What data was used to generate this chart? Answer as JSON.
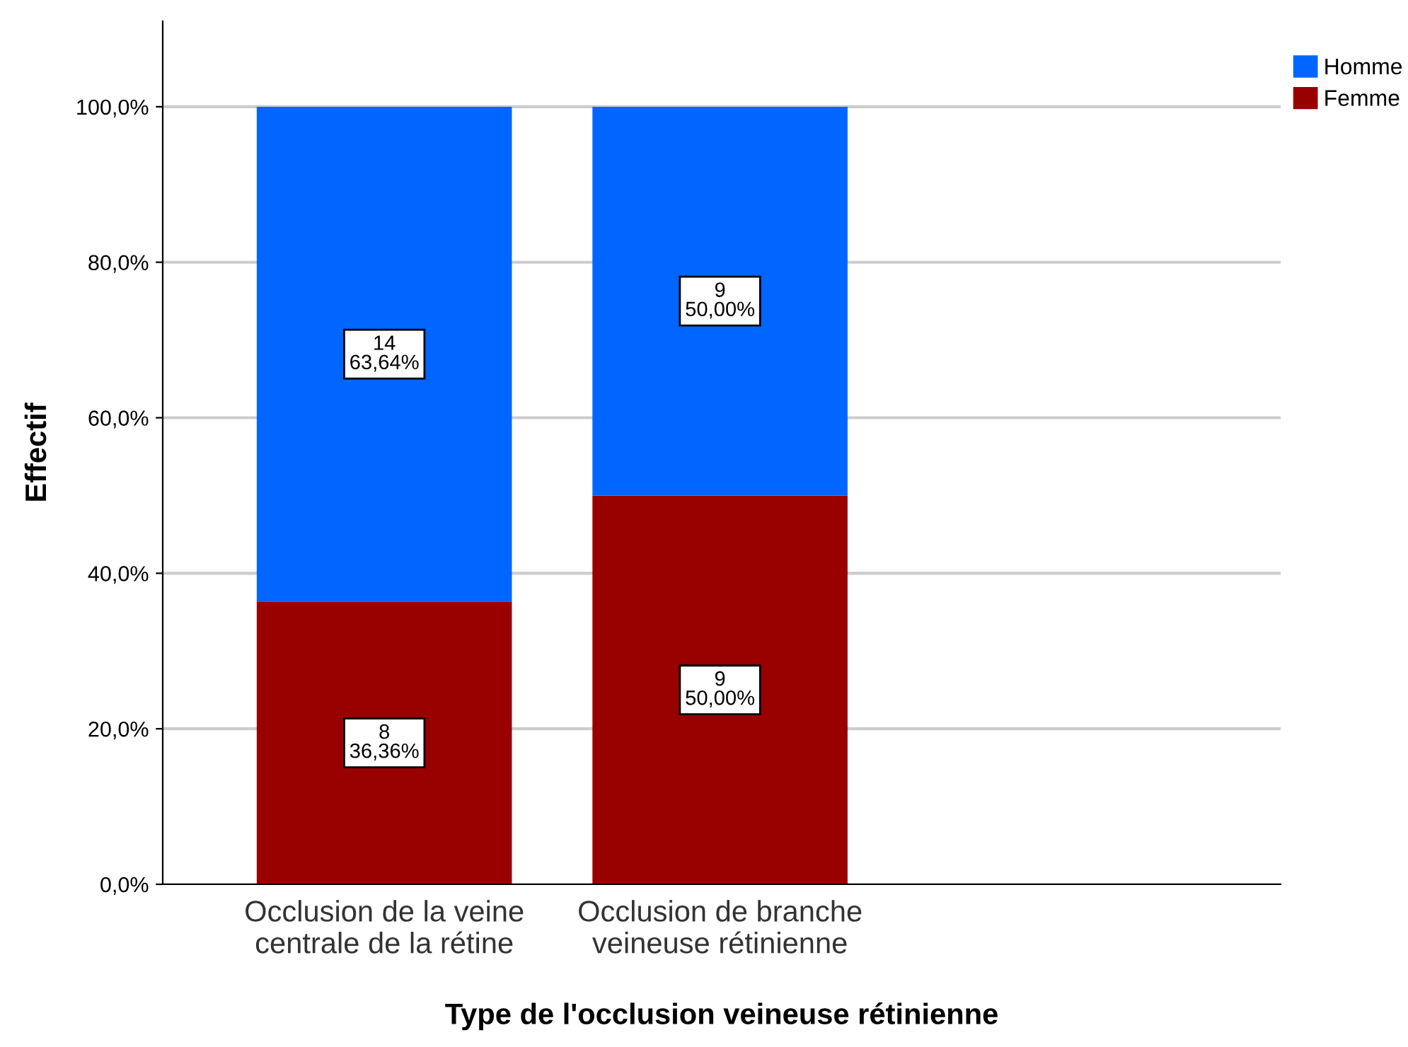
{
  "chart_data": {
    "type": "bar",
    "stacked": true,
    "xlabel": "Type de l'occlusion veineuse rétinienne",
    "ylabel": "Effectif",
    "categories": [
      "Occlusion de la veine\ncentrale de la rétine",
      "Occlusion de branche\nveineuse rétinienne"
    ],
    "series": [
      {
        "name": "Femme",
        "color": "#990000",
        "values": [
          36.36,
          50.0
        ],
        "value_labels": [
          "8\n36,36%",
          "9\n50,00%"
        ]
      },
      {
        "name": "Homme",
        "color": "#0066ff",
        "values": [
          63.64,
          50.0
        ],
        "value_labels": [
          "14\n63,64%",
          "9\n50,00%"
        ]
      }
    ],
    "ylim": [
      0,
      111
    ],
    "yticks": [
      {
        "value": 0,
        "label": "0,0%"
      },
      {
        "value": 20,
        "label": "20,0%"
      },
      {
        "value": 40,
        "label": "40,0%"
      },
      {
        "value": 60,
        "label": "60,0%"
      },
      {
        "value": 80,
        "label": "80,0%"
      },
      {
        "value": 100,
        "label": "100,0%"
      }
    ],
    "grid": "y",
    "legend": "top right"
  }
}
